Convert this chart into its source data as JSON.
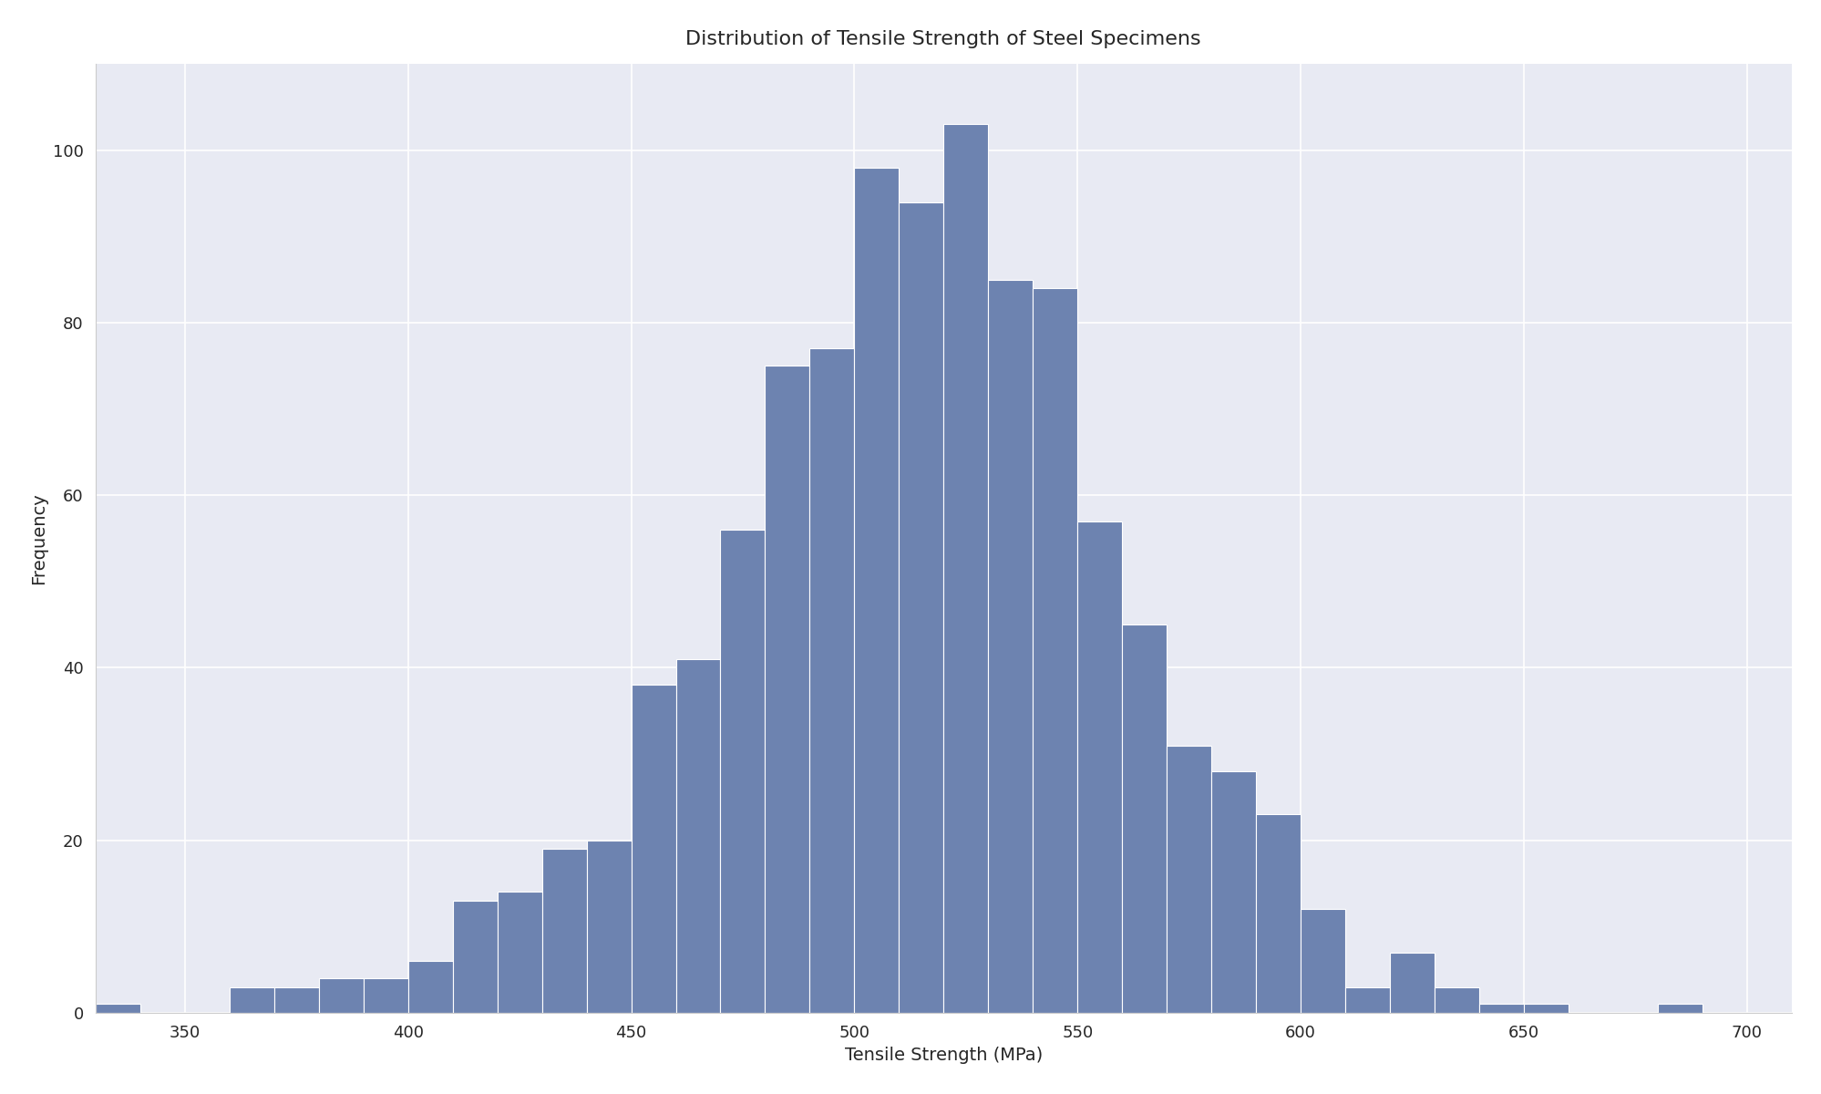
{
  "title": "Distribution of Tensile Strength of Steel Specimens",
  "xlabel": "Tensile Strength (MPa)",
  "ylabel": "Frequency",
  "bar_color": "#6d83b0",
  "edge_color": "white",
  "axes_bg": "#e8eaf3",
  "figure_bg": "#ffffff",
  "bin_edges": [
    330,
    340,
    350,
    360,
    370,
    380,
    390,
    400,
    410,
    420,
    430,
    440,
    450,
    460,
    470,
    480,
    490,
    500,
    510,
    520,
    530,
    540,
    550,
    560,
    570,
    580,
    590,
    600,
    610,
    620,
    630,
    640,
    650,
    660,
    670,
    680,
    690,
    700
  ],
  "frequencies": [
    1,
    0,
    0,
    3,
    3,
    4,
    4,
    6,
    13,
    14,
    19,
    20,
    38,
    41,
    56,
    75,
    77,
    98,
    94,
    103,
    85,
    84,
    57,
    45,
    31,
    28,
    23,
    12,
    3,
    7,
    3,
    1,
    1,
    0,
    0,
    1,
    0
  ],
  "xlim": [
    330,
    710
  ],
  "ylim": [
    0,
    110
  ],
  "xticks": [
    350,
    400,
    450,
    500,
    550,
    600,
    650,
    700
  ],
  "yticks": [
    0,
    20,
    40,
    60,
    80,
    100
  ],
  "title_fontsize": 16,
  "label_fontsize": 14,
  "tick_fontsize": 13,
  "grid_color": "white",
  "grid_linewidth": 1.2
}
